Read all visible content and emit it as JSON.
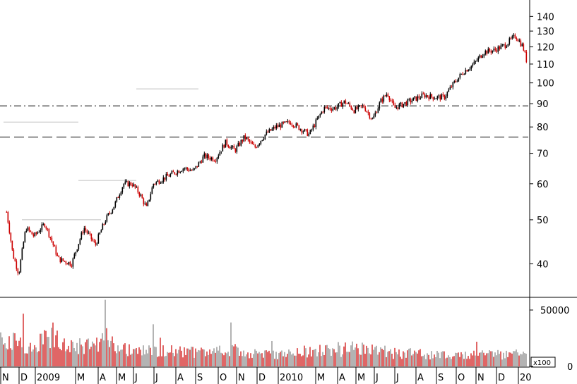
{
  "chart_data": [
    {
      "type": "candlestick",
      "title": "",
      "yscale": "log",
      "ylim": [
        34,
        150
      ],
      "yticks": [
        40,
        50,
        60,
        70,
        80,
        90,
        100,
        110,
        120,
        130,
        140
      ],
      "x_tick_labels": [
        "N",
        "D",
        "2009",
        "M",
        "A",
        "M",
        "J",
        "J",
        "A",
        "S",
        "O",
        "N",
        "D",
        "2010",
        "M",
        "A",
        "M",
        "J",
        "J",
        "A",
        "S",
        "O",
        "N",
        "D",
        "20"
      ],
      "reference_lines": [
        {
          "value": 89,
          "style": "dash-dot"
        },
        {
          "value": 76,
          "style": "dashed"
        }
      ],
      "support_levels": [
        {
          "value": 50,
          "from": "D",
          "to": "A"
        },
        {
          "value": 61,
          "from": "M",
          "to": "J"
        },
        {
          "value": 82,
          "from": "N",
          "to": "M"
        },
        {
          "value": 97,
          "from": "J",
          "to": "S"
        }
      ],
      "close_points": [
        {
          "x": "N",
          "y": 52
        },
        {
          "x": "N",
          "y": 42
        },
        {
          "x": "N",
          "y": 38
        },
        {
          "x": "D",
          "y": 48
        },
        {
          "x": "D",
          "y": 46
        },
        {
          "x": "2009",
          "y": 49
        },
        {
          "x": "2009",
          "y": 41
        },
        {
          "x": "2009",
          "y": 40
        },
        {
          "x": "M",
          "y": 48
        },
        {
          "x": "M",
          "y": 44
        },
        {
          "x": "A",
          "y": 50
        },
        {
          "x": "A",
          "y": 54
        },
        {
          "x": "M",
          "y": 60
        },
        {
          "x": "M",
          "y": 60
        },
        {
          "x": "J",
          "y": 57
        },
        {
          "x": "J",
          "y": 53
        },
        {
          "x": "J",
          "y": 60
        },
        {
          "x": "A",
          "y": 65
        },
        {
          "x": "A",
          "y": 64
        },
        {
          "x": "S",
          "y": 69
        },
        {
          "x": "S",
          "y": 68
        },
        {
          "x": "O",
          "y": 74
        },
        {
          "x": "O",
          "y": 71
        },
        {
          "x": "N",
          "y": 76
        },
        {
          "x": "N",
          "y": 72
        },
        {
          "x": "D",
          "y": 77
        },
        {
          "x": "D",
          "y": 80
        },
        {
          "x": "2010",
          "y": 82
        },
        {
          "x": "2010",
          "y": 77
        },
        {
          "x": "M",
          "y": 88
        },
        {
          "x": "M",
          "y": 88
        },
        {
          "x": "A",
          "y": 91
        },
        {
          "x": "A",
          "y": 87
        },
        {
          "x": "M",
          "y": 89
        },
        {
          "x": "M",
          "y": 83
        },
        {
          "x": "J",
          "y": 91
        },
        {
          "x": "J",
          "y": 95
        },
        {
          "x": "J",
          "y": 88
        },
        {
          "x": "A",
          "y": 94
        },
        {
          "x": "A",
          "y": 93
        },
        {
          "x": "S",
          "y": 93
        },
        {
          "x": "S",
          "y": 100
        },
        {
          "x": "O",
          "y": 106
        },
        {
          "x": "O",
          "y": 110
        },
        {
          "x": "N",
          "y": 117
        },
        {
          "x": "N",
          "y": 118
        },
        {
          "x": "D",
          "y": 121
        },
        {
          "x": "D",
          "y": 127
        },
        {
          "x": "20",
          "y": 120
        },
        {
          "x": "20",
          "y": 112
        }
      ]
    },
    {
      "type": "bar",
      "title": "",
      "multiplier_label": "x100",
      "ylim": [
        0,
        60000
      ],
      "yticks": [
        0,
        50000
      ],
      "ytick_labels": [
        "0",
        "50000"
      ],
      "value_points": [
        {
          "x": "N",
          "y": 25000
        },
        {
          "x": "N",
          "y": 20000
        },
        {
          "x": "D",
          "y": 18000
        },
        {
          "x": "D",
          "y": 15000
        },
        {
          "x": "2009",
          "y": 30000
        },
        {
          "x": "2009",
          "y": 20000
        },
        {
          "x": "M",
          "y": 18000
        },
        {
          "x": "M",
          "y": 16000
        },
        {
          "x": "A",
          "y": 28000
        },
        {
          "x": "A",
          "y": 15000
        },
        {
          "x": "M",
          "y": 14000
        },
        {
          "x": "J",
          "y": 13000
        },
        {
          "x": "J",
          "y": 14000
        },
        {
          "x": "A",
          "y": 13000
        },
        {
          "x": "S",
          "y": 12000
        },
        {
          "x": "O",
          "y": 14000
        },
        {
          "x": "N",
          "y": 13000
        },
        {
          "x": "D",
          "y": 11000
        },
        {
          "x": "2010",
          "y": 13000
        },
        {
          "x": "M",
          "y": 14000
        },
        {
          "x": "A",
          "y": 16000
        },
        {
          "x": "M",
          "y": 17000
        },
        {
          "x": "J",
          "y": 14000
        },
        {
          "x": "J",
          "y": 12000
        },
        {
          "x": "A",
          "y": 11000
        },
        {
          "x": "S",
          "y": 10000
        },
        {
          "x": "O",
          "y": 10000
        },
        {
          "x": "N",
          "y": 11000
        },
        {
          "x": "D",
          "y": 10000
        },
        {
          "x": "20",
          "y": 12000
        }
      ]
    }
  ],
  "colors": {
    "up": "#000000",
    "down": "#cc0000",
    "volume_up": "#808080",
    "volume_down": "#cc0000",
    "support_line": "#c0c0c0"
  }
}
